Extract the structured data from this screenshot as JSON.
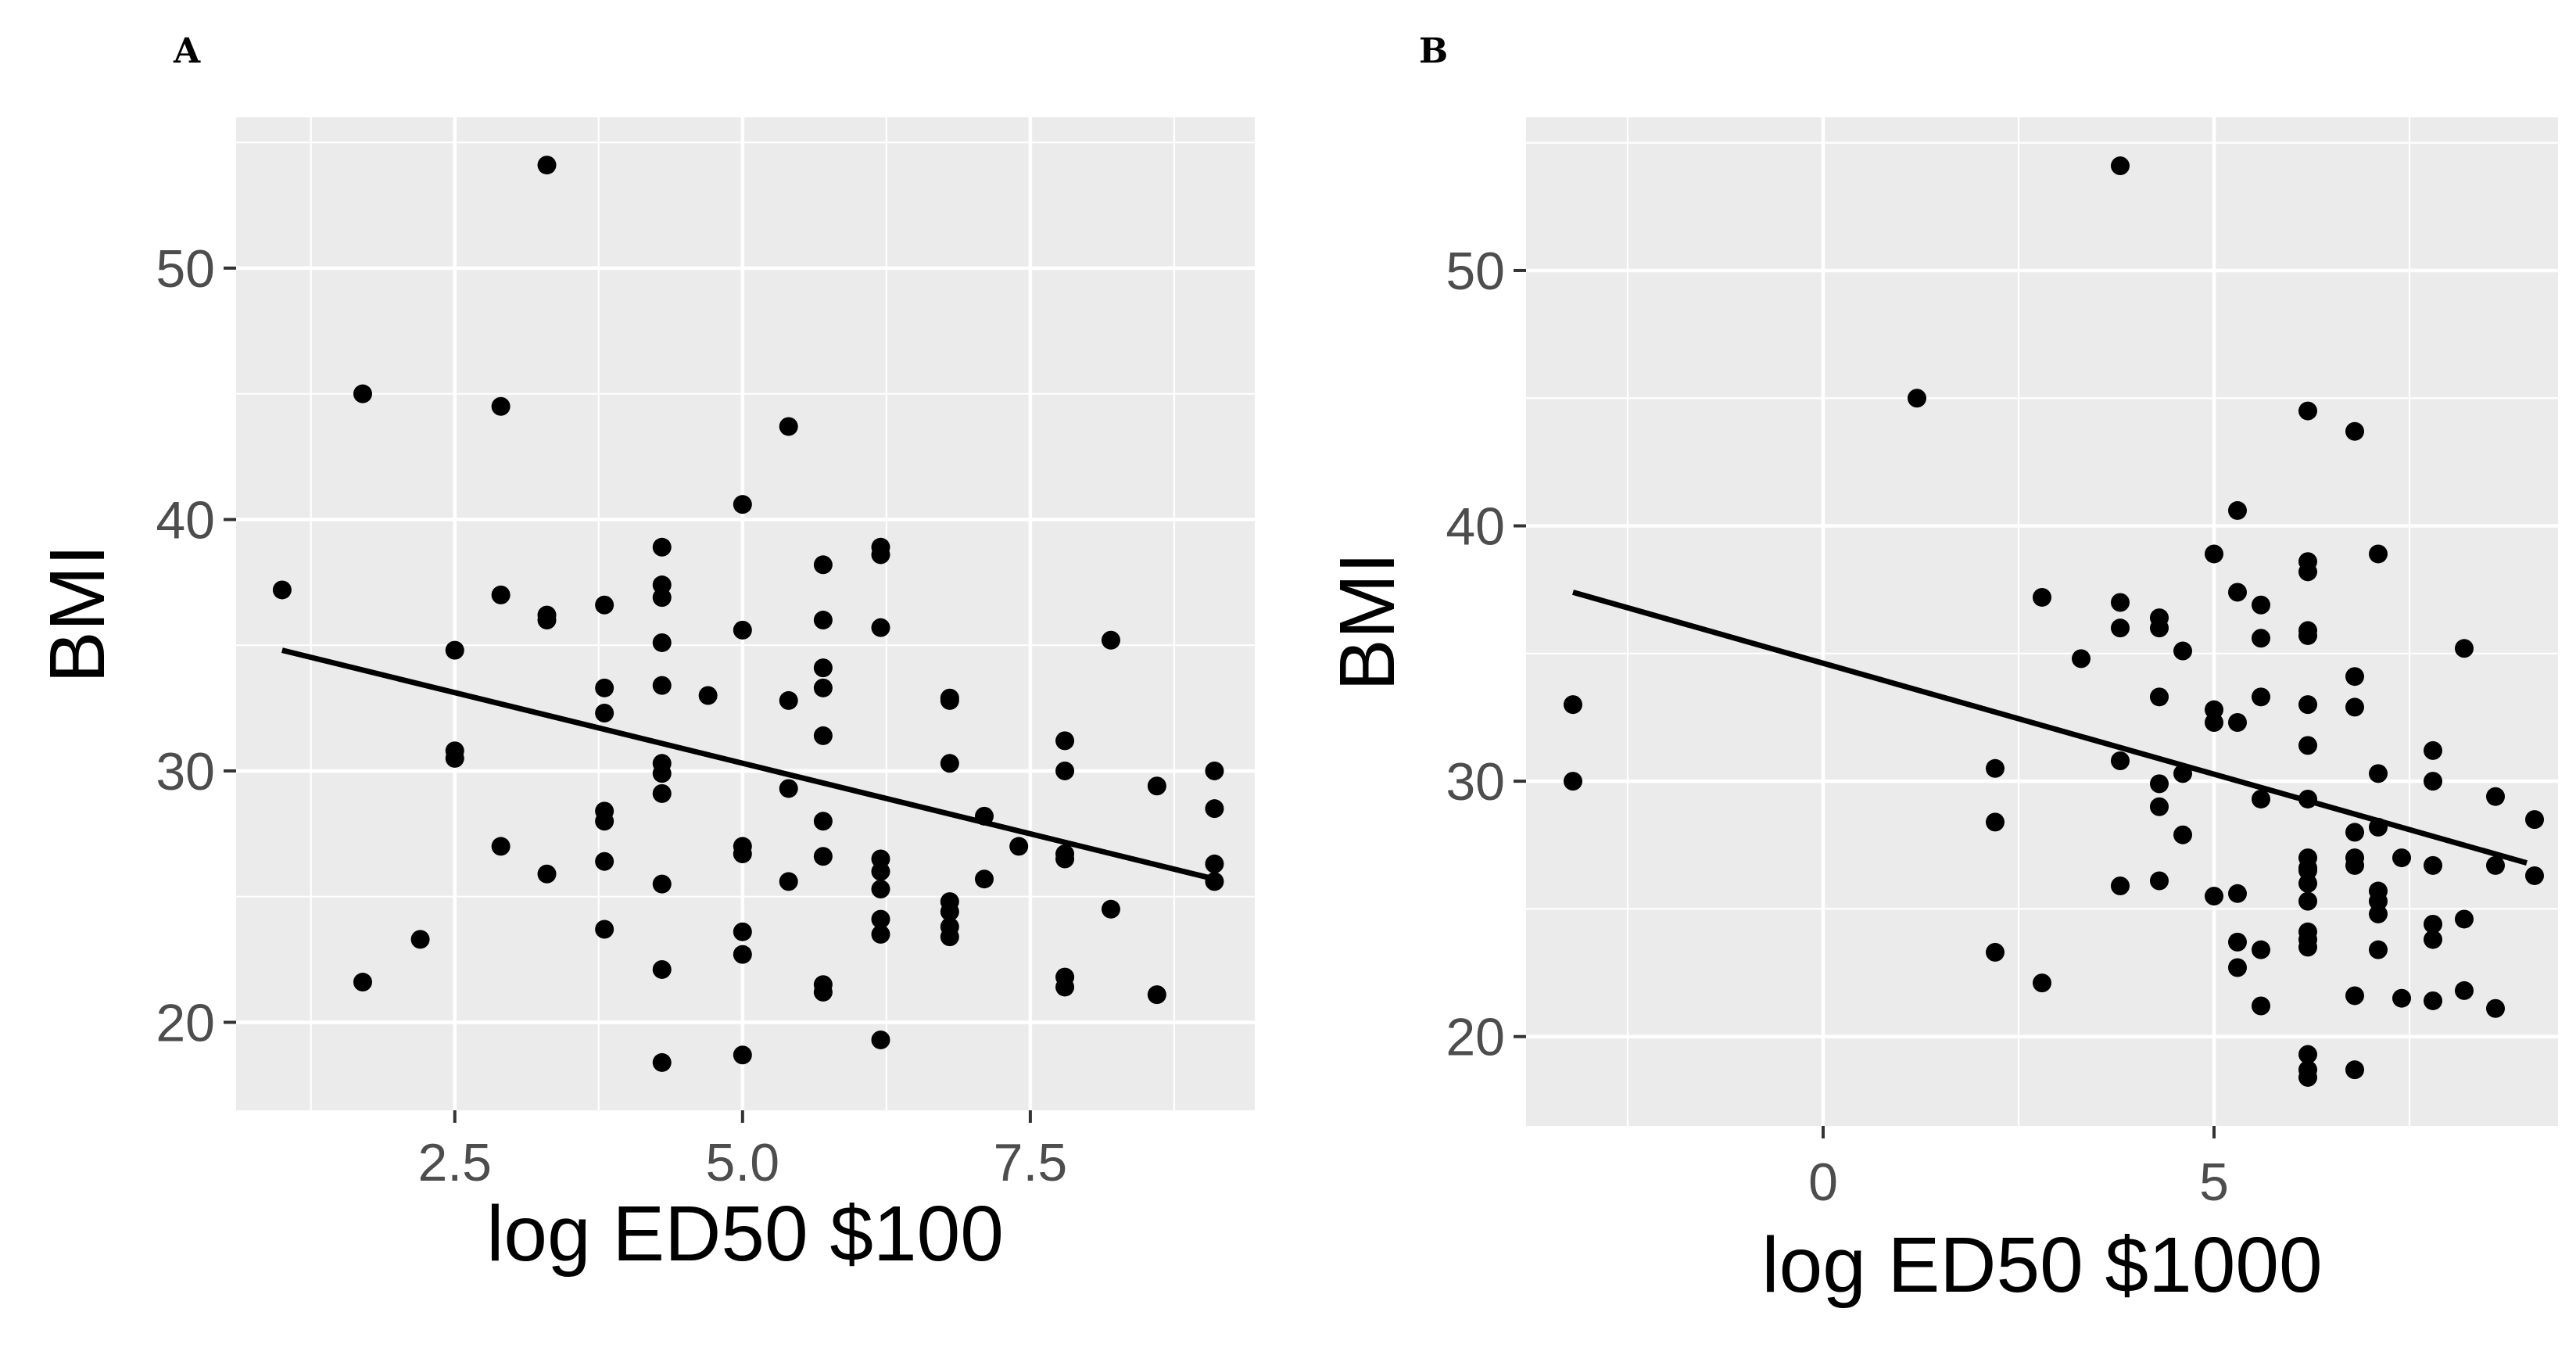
{
  "chart_data": [
    {
      "type": "scatter",
      "panel_label": "A",
      "xlabel": "log ED50 $100",
      "ylabel": "BMI",
      "xlim": [
        0.6,
        9.45
      ],
      "ylim": [
        16.5,
        56.0
      ],
      "xticks": [
        2.5,
        5.0,
        7.5
      ],
      "xtick_labels": [
        "2.5",
        "5.0",
        "7.5"
      ],
      "yticks": [
        20,
        30,
        40,
        50
      ],
      "ytick_labels": [
        "20",
        "30",
        "40",
        "50"
      ],
      "grid": true,
      "points": [
        [
          1.0,
          37.2
        ],
        [
          1.7,
          45.0
        ],
        [
          1.7,
          21.6
        ],
        [
          2.2,
          23.3
        ],
        [
          2.5,
          34.8
        ],
        [
          2.5,
          30.8
        ],
        [
          2.5,
          30.5
        ],
        [
          2.9,
          44.5
        ],
        [
          2.9,
          37.0
        ],
        [
          2.9,
          27.0
        ],
        [
          3.3,
          54.1
        ],
        [
          3.3,
          36.2
        ],
        [
          3.3,
          36.0
        ],
        [
          3.3,
          25.9
        ],
        [
          3.8,
          36.6
        ],
        [
          3.8,
          33.3
        ],
        [
          3.8,
          32.3
        ],
        [
          3.8,
          28.4
        ],
        [
          3.8,
          28.0
        ],
        [
          3.8,
          26.4
        ],
        [
          3.8,
          23.7
        ],
        [
          4.3,
          38.9
        ],
        [
          4.3,
          37.4
        ],
        [
          4.3,
          36.9
        ],
        [
          4.3,
          35.1
        ],
        [
          4.3,
          33.4
        ],
        [
          4.3,
          30.3
        ],
        [
          4.3,
          29.9
        ],
        [
          4.3,
          29.1
        ],
        [
          4.3,
          25.5
        ],
        [
          4.3,
          22.1
        ],
        [
          4.3,
          18.4
        ],
        [
          4.7,
          33.0
        ],
        [
          5.0,
          40.6
        ],
        [
          5.0,
          35.6
        ],
        [
          5.0,
          27.0
        ],
        [
          5.0,
          26.7
        ],
        [
          5.0,
          23.6
        ],
        [
          5.0,
          22.7
        ],
        [
          5.0,
          18.7
        ],
        [
          5.4,
          43.7
        ],
        [
          5.4,
          32.8
        ],
        [
          5.4,
          29.3
        ],
        [
          5.4,
          25.6
        ],
        [
          5.7,
          38.2
        ],
        [
          5.7,
          36.0
        ],
        [
          5.7,
          34.1
        ],
        [
          5.7,
          33.3
        ],
        [
          5.7,
          31.4
        ],
        [
          5.7,
          28.0
        ],
        [
          5.7,
          26.6
        ],
        [
          5.7,
          21.5
        ],
        [
          5.7,
          21.2
        ],
        [
          6.2,
          38.9
        ],
        [
          6.2,
          38.6
        ],
        [
          6.2,
          35.7
        ],
        [
          6.2,
          26.5
        ],
        [
          6.2,
          26.0
        ],
        [
          6.2,
          25.3
        ],
        [
          6.2,
          24.1
        ],
        [
          6.2,
          23.5
        ],
        [
          6.2,
          19.3
        ],
        [
          6.8,
          32.9
        ],
        [
          6.8,
          32.8
        ],
        [
          6.8,
          30.3
        ],
        [
          6.8,
          24.8
        ],
        [
          6.8,
          24.4
        ],
        [
          6.8,
          23.8
        ],
        [
          6.8,
          23.4
        ],
        [
          7.1,
          28.2
        ],
        [
          7.1,
          25.7
        ],
        [
          7.4,
          27.0
        ],
        [
          7.8,
          31.2
        ],
        [
          7.8,
          30.0
        ],
        [
          7.8,
          26.7
        ],
        [
          7.8,
          26.5
        ],
        [
          7.8,
          21.8
        ],
        [
          7.8,
          21.4
        ],
        [
          8.2,
          35.2
        ],
        [
          8.2,
          24.5
        ],
        [
          8.6,
          29.4
        ],
        [
          8.6,
          21.1
        ],
        [
          9.1,
          30.0
        ],
        [
          9.1,
          28.5
        ],
        [
          9.1,
          26.3
        ],
        [
          9.1,
          25.6
        ]
      ],
      "fit_line": {
        "x": [
          1.0,
          9.1
        ],
        "y": [
          34.8,
          25.7
        ]
      }
    },
    {
      "type": "scatter",
      "panel_label": "B",
      "xlabel": "log ED50 $1000",
      "ylabel": "BMI",
      "xlim": [
        -3.8,
        9.4
      ],
      "ylim": [
        16.5,
        56.0
      ],
      "xticks": [
        0,
        5
      ],
      "xtick_labels": [
        "0",
        "5"
      ],
      "yticks": [
        20,
        30,
        40,
        50
      ],
      "ytick_labels": [
        "20",
        "30",
        "40",
        "50"
      ],
      "grid": true,
      "points": [
        [
          -3.2,
          33.0
        ],
        [
          -3.2,
          30.0
        ],
        [
          1.2,
          45.0
        ],
        [
          2.2,
          30.5
        ],
        [
          2.2,
          28.4
        ],
        [
          2.2,
          23.3
        ],
        [
          2.8,
          37.2
        ],
        [
          2.8,
          22.1
        ],
        [
          3.3,
          34.8
        ],
        [
          3.8,
          54.1
        ],
        [
          3.8,
          37.0
        ],
        [
          3.8,
          36.0
        ],
        [
          3.8,
          30.8
        ],
        [
          3.8,
          25.9
        ],
        [
          4.3,
          36.4
        ],
        [
          4.3,
          36.0
        ],
        [
          4.3,
          33.3
        ],
        [
          4.3,
          29.9
        ],
        [
          4.3,
          29.0
        ],
        [
          4.3,
          26.1
        ],
        [
          4.6,
          35.1
        ],
        [
          4.6,
          30.3
        ],
        [
          4.6,
          27.9
        ],
        [
          5.0,
          38.9
        ],
        [
          5.0,
          32.8
        ],
        [
          5.0,
          32.3
        ],
        [
          5.0,
          25.5
        ],
        [
          5.3,
          40.6
        ],
        [
          5.3,
          37.4
        ],
        [
          5.3,
          32.3
        ],
        [
          5.3,
          25.6
        ],
        [
          5.3,
          23.7
        ],
        [
          5.3,
          22.7
        ],
        [
          5.6,
          36.9
        ],
        [
          5.6,
          35.6
        ],
        [
          5.6,
          33.3
        ],
        [
          5.6,
          29.3
        ],
        [
          5.6,
          23.4
        ],
        [
          5.6,
          21.2
        ],
        [
          6.2,
          44.5
        ],
        [
          6.2,
          38.6
        ],
        [
          6.2,
          38.2
        ],
        [
          6.2,
          35.9
        ],
        [
          6.2,
          35.7
        ],
        [
          6.2,
          33.0
        ],
        [
          6.2,
          31.4
        ],
        [
          6.2,
          29.3
        ],
        [
          6.2,
          27.0
        ],
        [
          6.2,
          26.6
        ],
        [
          6.2,
          26.5
        ],
        [
          6.2,
          26.0
        ],
        [
          6.2,
          25.3
        ],
        [
          6.2,
          24.1
        ],
        [
          6.2,
          23.8
        ],
        [
          6.2,
          23.5
        ],
        [
          6.2,
          19.3
        ],
        [
          6.2,
          18.7
        ],
        [
          6.2,
          18.4
        ],
        [
          6.8,
          43.7
        ],
        [
          6.8,
          34.1
        ],
        [
          6.8,
          32.9
        ],
        [
          6.8,
          28.0
        ],
        [
          6.8,
          27.0
        ],
        [
          6.8,
          26.7
        ],
        [
          6.8,
          21.6
        ],
        [
          6.8,
          18.7
        ],
        [
          7.1,
          38.9
        ],
        [
          7.1,
          30.3
        ],
        [
          7.1,
          28.2
        ],
        [
          7.1,
          25.7
        ],
        [
          7.1,
          25.3
        ],
        [
          7.1,
          24.8
        ],
        [
          7.1,
          23.4
        ],
        [
          7.4,
          27.0
        ],
        [
          7.4,
          21.5
        ],
        [
          7.8,
          31.2
        ],
        [
          7.8,
          30.0
        ],
        [
          7.8,
          26.7
        ],
        [
          7.8,
          24.4
        ],
        [
          7.8,
          23.8
        ],
        [
          7.8,
          21.4
        ],
        [
          8.2,
          35.2
        ],
        [
          8.2,
          24.6
        ],
        [
          8.2,
          21.8
        ],
        [
          8.6,
          29.4
        ],
        [
          8.6,
          26.7
        ],
        [
          8.6,
          21.1
        ],
        [
          9.1,
          28.5
        ],
        [
          9.1,
          26.3
        ]
      ],
      "fit_line": {
        "x": [
          -3.2,
          9.0
        ],
        "y": [
          37.4,
          26.8
        ]
      }
    }
  ]
}
